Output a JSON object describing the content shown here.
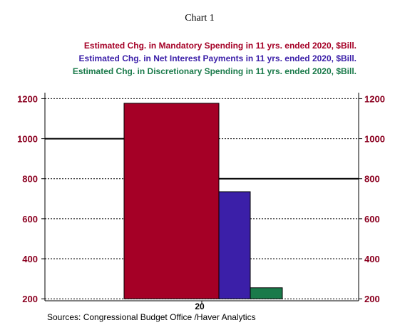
{
  "chart_data": {
    "type": "bar",
    "title": "Chart 1",
    "categories": [
      "20"
    ],
    "series": [
      {
        "name": "Estimated Chg. in Mandatory Spending in 11 yrs. ended 2020, $Bill.",
        "values": [
          1177
        ],
        "color": "#a50026"
      },
      {
        "name": "Estimated Chg. in Net Interest Payments in 11 yrs. ended 2020, $Bill.",
        "values": [
          735
        ],
        "color": "#3b1fa8"
      },
      {
        "name": "Estimated Chg. in Discretionary Spending in 11 yrs. ended 2020, $Bill.",
        "values": [
          255
        ],
        "color": "#1a7a4a"
      }
    ],
    "ylim": [
      190,
      1230
    ],
    "yticks": [
      200,
      400,
      600,
      800,
      1000,
      1200
    ],
    "reference_lines": [
      {
        "side": "left",
        "value": 1000
      },
      {
        "side": "right",
        "value": 800
      }
    ],
    "grid": true,
    "source": "Sources:  Congressional Budget Office /Haver Analytics"
  }
}
